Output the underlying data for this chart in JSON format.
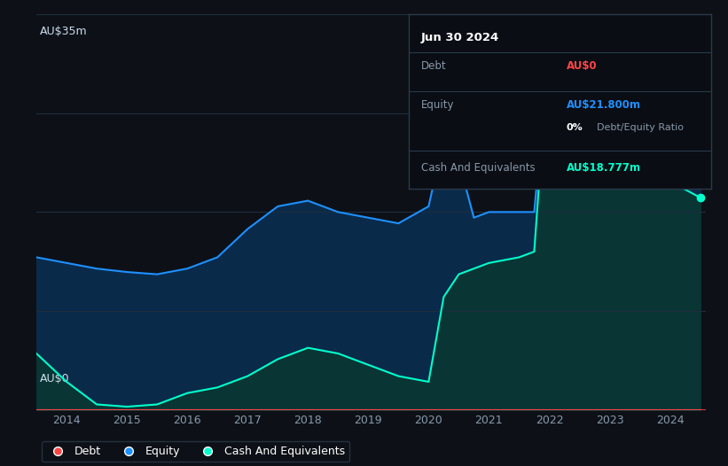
{
  "bg_color": "#0d1117",
  "plot_bg_color": "#0d1117",
  "grid_color": "#1e2d3d",
  "title_label": "AU$35m",
  "zero_label": "AU$0",
  "xlabel_color": "#8899aa",
  "ylabel_color": "#ccddee",
  "debt_color": "#ff4444",
  "equity_color": "#1e90ff",
  "cash_color": "#00ffcc",
  "equity_fill": "#0a2a4a",
  "cash_fill": "#0a3535",
  "ylim": [
    0,
    35
  ],
  "tooltip": {
    "date": "Jun 30 2024",
    "debt_label": "Debt",
    "debt_value": "AU$0",
    "debt_color": "#ff4444",
    "equity_label": "Equity",
    "equity_value": "AU$21.800m",
    "equity_color": "#1e90ff",
    "ratio_value": "0%",
    "ratio_label": "Debt/Equity Ratio",
    "cash_label": "Cash And Equivalents",
    "cash_value": "AU$18.777m",
    "cash_color": "#00ffcc"
  },
  "years": [
    2013.5,
    2014.0,
    2014.5,
    2015.0,
    2015.5,
    2016.0,
    2016.5,
    2017.0,
    2017.5,
    2018.0,
    2018.5,
    2019.0,
    2019.5,
    2020.0,
    2020.25,
    2020.5,
    2020.75,
    2021.0,
    2021.5,
    2021.75,
    2022.0,
    2022.25,
    2022.5,
    2022.75,
    2023.0,
    2023.25,
    2023.5,
    2023.75,
    2024.0,
    2024.25,
    2024.5
  ],
  "equity": [
    13.5,
    13.0,
    12.5,
    12.2,
    12.0,
    12.5,
    13.5,
    16.0,
    18.0,
    18.5,
    17.5,
    17.0,
    16.5,
    18.0,
    24.0,
    22.0,
    17.0,
    17.5,
    17.5,
    17.5,
    32.0,
    31.0,
    28.0,
    26.0,
    26.0,
    24.5,
    24.0,
    23.0,
    22.0,
    21.5,
    21.8
  ],
  "cash": [
    5.0,
    2.5,
    0.5,
    0.3,
    0.5,
    1.5,
    2.0,
    3.0,
    4.5,
    5.5,
    5.0,
    4.0,
    3.0,
    2.5,
    10.0,
    12.0,
    12.5,
    13.0,
    13.5,
    14.0,
    32.5,
    31.5,
    28.0,
    26.0,
    25.0,
    23.5,
    22.5,
    21.0,
    20.0,
    19.5,
    18.777
  ],
  "debt": [
    0,
    0,
    0,
    0,
    0,
    0,
    0,
    0,
    0,
    0,
    0,
    0,
    0,
    0,
    0,
    0,
    0,
    0,
    0,
    0,
    0,
    0,
    0,
    0,
    0,
    0,
    0,
    0,
    0,
    0,
    0
  ],
  "xticks": [
    2014,
    2015,
    2016,
    2017,
    2018,
    2019,
    2020,
    2021,
    2022,
    2023,
    2024
  ],
  "legend": [
    {
      "label": "Debt",
      "color": "#ff4444"
    },
    {
      "label": "Equity",
      "color": "#1e90ff"
    },
    {
      "label": "Cash And Equivalents",
      "color": "#00ffcc"
    }
  ]
}
